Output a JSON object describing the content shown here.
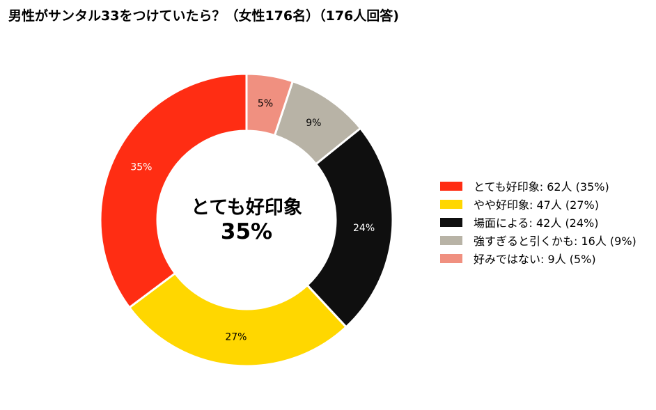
{
  "title": "男性がサンタル33をつけていたら？（女性176名）（176人回答)",
  "center": {
    "line1": "とても好印象",
    "line2": "35%"
  },
  "chart_data": {
    "type": "pie",
    "title": "男性がサンタル33をつけていたら？（女性176名）（176人回答)",
    "slices": [
      {
        "label": "とても好印象",
        "count": 62,
        "percent": 35,
        "color": "#FF2D13",
        "label_color": "#ffffff",
        "legend": "とても好印象:  62人 (35%)"
      },
      {
        "label": "やや好印象",
        "count": 47,
        "percent": 27,
        "color": "#FFD700",
        "label_color": "#000000",
        "legend": "やや好印象:  47人 (27%)"
      },
      {
        "label": "場面による",
        "count": 42,
        "percent": 24,
        "color": "#0F0F0F",
        "label_color": "#ffffff",
        "legend": "場面による:  42人 (24%)"
      },
      {
        "label": "強すぎると引くかも",
        "count": 16,
        "percent": 9,
        "color": "#B8B3A6",
        "label_color": "#000000",
        "legend": "強すぎると引くかも:  16人 (9%)"
      },
      {
        "label": "好みではない",
        "count": 9,
        "percent": 5,
        "color": "#F09080",
        "label_color": "#000000",
        "legend": "好みではない:  9人 (5%)"
      }
    ],
    "start": "top",
    "direction": "counterclockwise",
    "donut": true,
    "legend_position": "right"
  }
}
